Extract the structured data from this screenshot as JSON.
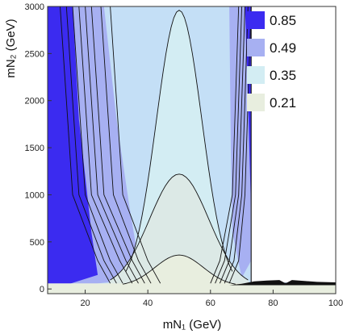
{
  "chart_data": {
    "type": "heatmap",
    "title": "",
    "xlabel": "mN₁ (GeV)",
    "ylabel": "mN₂ (GeV)",
    "xlim": [
      8,
      100
    ],
    "ylim": [
      -50,
      3000
    ],
    "x_ticks": [
      "20",
      "40",
      "60",
      "80",
      "100"
    ],
    "y_ticks": [
      "0",
      "500",
      "1000",
      "1500",
      "2000",
      "2500",
      "3000"
    ],
    "grid": false,
    "legend_position": "top-right",
    "legend": [
      {
        "value": "0.85",
        "color": "#3b2bf0"
      },
      {
        "value": "0.49",
        "color": "#a7b0f2"
      },
      {
        "value": "0.35",
        "color": "#d3edf3"
      },
      {
        "value": "0.21",
        "color": "#e8eedf"
      }
    ],
    "level_colors": [
      "#e8eedf",
      "#d3edf3",
      "#c4dff6",
      "#a7b0f2",
      "#3b2bf0"
    ],
    "boundary_x_upper": 73,
    "band_y_max": 70
  }
}
